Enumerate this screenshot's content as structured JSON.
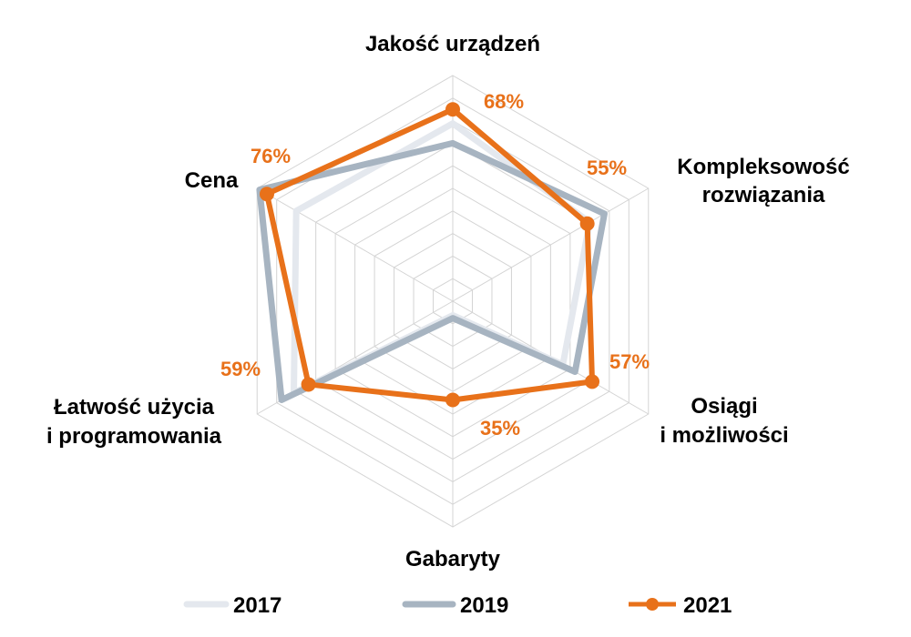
{
  "chart_data": {
    "type": "radar",
    "categories": [
      "Jakość urządzeń",
      "Kompleksowość rozwiązania",
      "Osiągi i możliwości",
      "Gabaryty",
      "Łatwość użycia i programowania",
      "Cena"
    ],
    "rmax": 80,
    "rings": 10,
    "series": [
      {
        "name": "2017",
        "color": "#e4e8ee",
        "values": [
          63,
          56,
          45,
          5,
          65,
          64
        ],
        "markers": false
      },
      {
        "name": "2019",
        "color": "#a7b4c1",
        "values": [
          56,
          62,
          50,
          6,
          70,
          79
        ],
        "markers": false
      },
      {
        "name": "2021",
        "color": "#e8711a",
        "values": [
          68,
          55,
          57,
          35,
          59,
          76
        ],
        "markers": true
      }
    ],
    "data_labels": [
      "68%",
      "55%",
      "57%",
      "35%",
      "59%",
      "76%"
    ],
    "legend": [
      "2017",
      "2019",
      "2021"
    ],
    "legend_position": "bottom",
    "grid": true
  }
}
